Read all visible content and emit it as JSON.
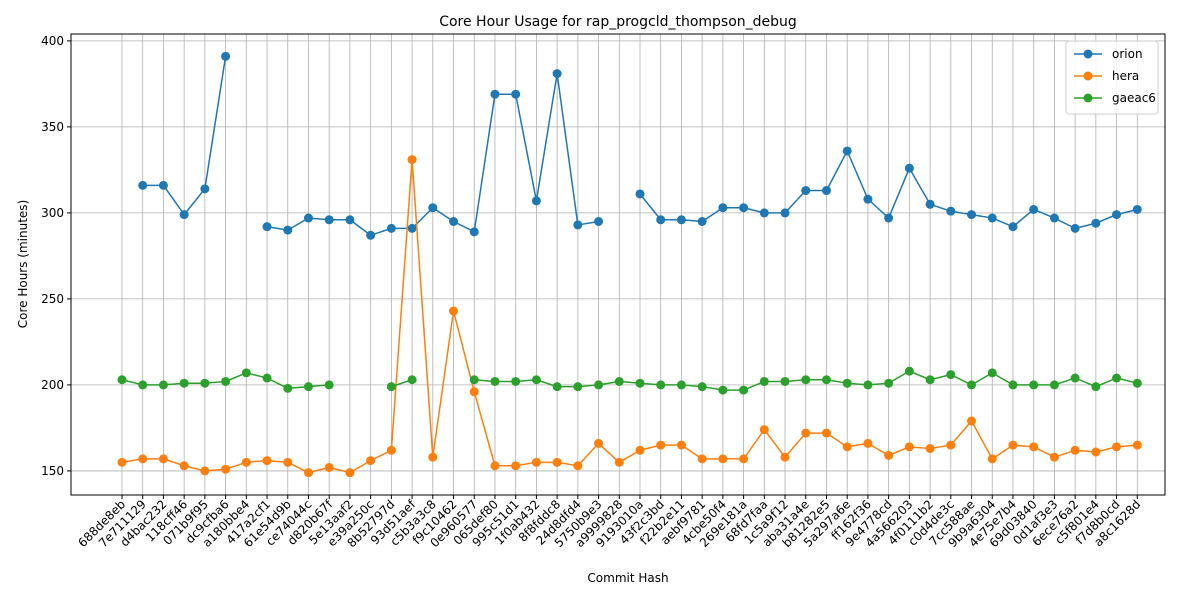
{
  "chart_data": {
    "type": "line",
    "title": "Core Hour Usage for rap_progcld_thompson_debug",
    "xlabel": "Commit Hash",
    "ylabel": "Core Hours (minutes)",
    "ylim": [
      136,
      404
    ],
    "yticks": [
      150,
      200,
      250,
      300,
      350,
      400
    ],
    "grid": true,
    "legend_position": "top-right",
    "categories": [
      "688de8eb",
      "7e711129",
      "d4bac232",
      "118cff46",
      "071b9f95",
      "dc9cfba6",
      "a180bbe4",
      "417a2cf1",
      "61e54d9b",
      "ce74044c",
      "d820b67f",
      "5e13aaf2",
      "e39a250c",
      "8b52797d",
      "93d51aef",
      "c5b3a3c8",
      "f9c10462",
      "0e960577",
      "065def80",
      "995c51d1",
      "1f0ab432",
      "8f8fddc8",
      "24d8dfd4",
      "5750b9e3",
      "a9999828",
      "9193010a",
      "43f2c3bd",
      "f22b2e11",
      "aebf9781",
      "4cbe50f4",
      "269e181a",
      "68fd7faa",
      "1c5a9f12",
      "aba31a4e",
      "b81282e5",
      "5a297a6e",
      "ff162f36",
      "9e4778cd",
      "4a566203",
      "4f0111b2",
      "c0d4de3c",
      "7cc588ae",
      "9b9a6304",
      "4e75e7b4",
      "69d03840",
      "0d1af3e3",
      "6ece76a2",
      "c5f801e4",
      "f7d8b0cd",
      "a8c1628d"
    ],
    "series": [
      {
        "name": "orion",
        "color": "#1f77b4",
        "values": [
          null,
          316,
          316,
          299,
          314,
          391,
          null,
          292,
          290,
          297,
          296,
          296,
          287,
          291,
          291,
          303,
          295,
          289,
          369,
          369,
          307,
          381,
          293,
          295,
          null,
          311,
          296,
          296,
          295,
          303,
          303,
          300,
          300,
          313,
          313,
          336,
          308,
          297,
          326,
          305,
          301,
          299,
          297,
          292,
          302,
          297,
          291,
          294,
          299,
          302
        ]
      },
      {
        "name": "hera",
        "color": "#ff7f0e",
        "values": [
          155,
          157,
          157,
          153,
          150,
          151,
          155,
          156,
          155,
          149,
          152,
          149,
          156,
          162,
          331,
          158,
          243,
          196,
          153,
          153,
          155,
          155,
          153,
          166,
          155,
          162,
          165,
          165,
          157,
          157,
          157,
          174,
          158,
          172,
          172,
          164,
          166,
          159,
          164,
          163,
          165,
          179,
          157,
          165,
          164,
          158,
          162,
          161,
          164,
          165
        ]
      },
      {
        "name": "gaeac6",
        "color": "#2ca02c",
        "values": [
          203,
          200,
          200,
          201,
          201,
          202,
          207,
          204,
          198,
          199,
          200,
          null,
          null,
          199,
          203,
          null,
          null,
          203,
          202,
          202,
          203,
          199,
          199,
          200,
          202,
          201,
          200,
          200,
          199,
          197,
          197,
          202,
          202,
          203,
          203,
          201,
          200,
          201,
          208,
          203,
          206,
          200,
          207,
          200,
          200,
          200,
          204,
          199,
          204,
          201
        ]
      }
    ]
  }
}
